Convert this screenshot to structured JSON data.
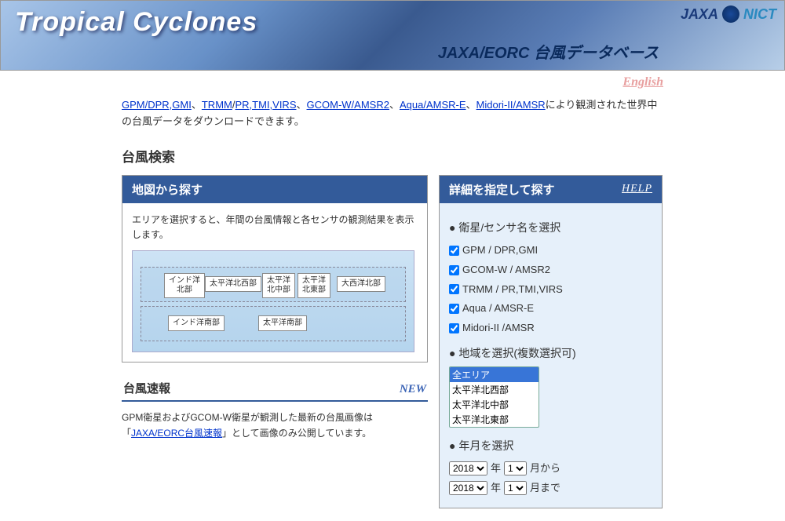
{
  "banner": {
    "title": "Tropical Cyclones",
    "subtitle": "JAXA/EORC 台風データベース",
    "logo_jaxa": "JAXA",
    "logo_nict": "NICT"
  },
  "lang": {
    "english": "English"
  },
  "intro": {
    "link1": "GPM/DPR,GMI",
    "sep1": "、",
    "link2": "TRMM",
    "sep1b": "/",
    "link2b": "PR,TMI,VIRS",
    "sep2": "、",
    "link3": "GCOM-W/AMSR2",
    "sep3": "、",
    "link4": "Aqua/AMSR-E",
    "sep4": "、",
    "link5": "Midori-II/AMSR",
    "tail": "により観測された世界中の台風データをダウンロードできます。"
  },
  "search_title": "台風検索",
  "map_panel": {
    "header": "地図から探す",
    "desc": "エリアを選択すると、年間の台風情報と各センサの観測結果を表示します。",
    "regions": {
      "r1": "インド洋\n北部",
      "r2": "太平洋北西部",
      "r3": "太平洋\n北中部",
      "r4": "太平洋\n北東部",
      "r5": "大西洋北部",
      "r6": "インド洋南部",
      "r7": "太平洋南部"
    }
  },
  "news": {
    "header": "台風速報",
    "new": "NEW",
    "line1a": "GPM衛星およびGCOM-W衛星が観測した最新の台風画像は",
    "line1b": "「",
    "link": "JAXA/EORC台風速報",
    "line1c": "」として画像のみ公開しています。"
  },
  "detail_panel": {
    "header": "詳細を指定して探す",
    "help": "HELP",
    "sensor_head": "衛星/センサ名を選択",
    "sensors": [
      "GPM / DPR,GMI",
      "GCOM-W / AMSR2",
      "TRMM / PR,TMI,VIRS",
      "Aqua / AMSR-E",
      "Midori-II /AMSR"
    ],
    "region_head": "地域を選択(複数選択可)",
    "region_options": [
      "全エリア",
      "太平洋北西部",
      "太平洋北中部",
      "太平洋北東部"
    ],
    "date_head": "年月を選択",
    "year_from": "2018",
    "month_from": "1",
    "from_y": "年",
    "from_m": "月から",
    "year_to": "2018",
    "month_to": "1",
    "to_y": "年",
    "to_m": "月まで"
  }
}
